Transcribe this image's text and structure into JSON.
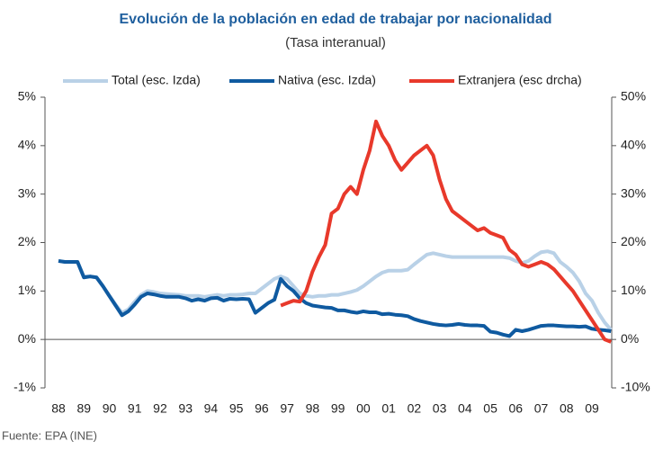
{
  "chart_data": {
    "type": "line",
    "title": "Evolución de la población en edad de trabajar por nacionalidad",
    "subtitle": "(Tasa interanual)",
    "source": "Fuente: EPA (INE)",
    "categories": [
      "88",
      null,
      null,
      null,
      "89",
      null,
      null,
      null,
      "90",
      null,
      null,
      null,
      "91",
      null,
      null,
      null,
      "92",
      null,
      null,
      null,
      "93",
      null,
      null,
      null,
      "94",
      null,
      null,
      null,
      "95",
      null,
      null,
      null,
      "96",
      null,
      null,
      null,
      "97",
      null,
      null,
      null,
      "98",
      null,
      null,
      null,
      "99",
      null,
      null,
      null,
      "00",
      null,
      null,
      null,
      "01",
      null,
      null,
      null,
      "02",
      null,
      null,
      null,
      "03",
      null,
      null,
      null,
      "04",
      null,
      null,
      null,
      "05",
      null,
      null,
      null,
      "06",
      null,
      null,
      null,
      "07",
      null,
      null,
      null,
      "08",
      null,
      null,
      null,
      "09",
      null,
      null,
      null
    ],
    "series": [
      {
        "name": "Total (esc. Izda)",
        "color": "#b9d1e7",
        "axis": "y",
        "values": [
          1.62,
          1.6,
          1.6,
          1.6,
          1.3,
          1.3,
          1.28,
          1.1,
          0.9,
          0.72,
          0.55,
          0.62,
          0.78,
          0.92,
          1.0,
          0.98,
          0.95,
          0.94,
          0.93,
          0.92,
          0.9,
          0.9,
          0.9,
          0.88,
          0.9,
          0.92,
          0.9,
          0.92,
          0.92,
          0.93,
          0.95,
          0.95,
          1.05,
          1.15,
          1.25,
          1.3,
          1.25,
          1.1,
          0.95,
          0.9,
          0.88,
          0.9,
          0.9,
          0.92,
          0.92,
          0.95,
          0.98,
          1.02,
          1.1,
          1.2,
          1.3,
          1.38,
          1.42,
          1.42,
          1.42,
          1.44,
          1.55,
          1.65,
          1.75,
          1.78,
          1.75,
          1.72,
          1.7,
          1.7,
          1.7,
          1.7,
          1.7,
          1.7,
          1.7,
          1.7,
          1.7,
          1.68,
          1.62,
          1.58,
          1.62,
          1.72,
          1.8,
          1.82,
          1.78,
          1.6,
          1.5,
          1.38,
          1.2,
          0.95,
          0.8,
          0.55,
          0.35,
          0.2
        ]
      },
      {
        "name": "Nativa (esc. Izda)",
        "color": "#0f5aa0",
        "axis": "y",
        "values": [
          1.62,
          1.6,
          1.6,
          1.6,
          1.28,
          1.3,
          1.28,
          1.1,
          0.9,
          0.7,
          0.5,
          0.58,
          0.72,
          0.88,
          0.95,
          0.93,
          0.9,
          0.88,
          0.88,
          0.88,
          0.85,
          0.8,
          0.83,
          0.8,
          0.85,
          0.86,
          0.8,
          0.84,
          0.83,
          0.84,
          0.83,
          0.55,
          0.65,
          0.75,
          0.82,
          1.25,
          1.1,
          1.0,
          0.85,
          0.75,
          0.7,
          0.68,
          0.66,
          0.65,
          0.6,
          0.6,
          0.57,
          0.55,
          0.58,
          0.56,
          0.56,
          0.52,
          0.53,
          0.51,
          0.5,
          0.48,
          0.42,
          0.38,
          0.35,
          0.32,
          0.3,
          0.29,
          0.3,
          0.32,
          0.3,
          0.29,
          0.29,
          0.28,
          0.16,
          0.14,
          0.1,
          0.07,
          0.2,
          0.17,
          0.2,
          0.24,
          0.28,
          0.29,
          0.29,
          0.28,
          0.27,
          0.27,
          0.26,
          0.27,
          0.22,
          0.2,
          0.19,
          0.17
        ]
      },
      {
        "name": "Extranjera (esc drcha)",
        "color": "#e8392b",
        "axis": "y2",
        "values": [
          null,
          null,
          null,
          null,
          null,
          null,
          null,
          null,
          null,
          null,
          null,
          null,
          null,
          null,
          null,
          null,
          null,
          null,
          null,
          null,
          null,
          null,
          null,
          null,
          null,
          null,
          null,
          null,
          null,
          null,
          null,
          null,
          null,
          null,
          null,
          7.0,
          7.5,
          8,
          7.8,
          10,
          14,
          17,
          19.5,
          26,
          27,
          30,
          31.5,
          30,
          35,
          39,
          45,
          42,
          40,
          37,
          35,
          36.5,
          38,
          39,
          40,
          38,
          33,
          29,
          26.5,
          25.5,
          24.5,
          23.5,
          22.5,
          23,
          22,
          21.5,
          21,
          18.5,
          17.5,
          15.5,
          15,
          15.5,
          16,
          15.5,
          14.5,
          13,
          11.5,
          10,
          8,
          6,
          4,
          2,
          0,
          -0.5
        ]
      }
    ],
    "ylim": [
      -1,
      5
    ],
    "yticks": [
      {
        "value": -1,
        "label": "-1%"
      },
      {
        "value": 0,
        "label": "0%"
      },
      {
        "value": 1,
        "label": "1%"
      },
      {
        "value": 2,
        "label": "2%"
      },
      {
        "value": 3,
        "label": "3%"
      },
      {
        "value": 4,
        "label": "4%"
      },
      {
        "value": 5,
        "label": "5%"
      }
    ],
    "y2lim": [
      -10,
      50
    ],
    "y2ticks": [
      {
        "value": -10,
        "label": "-10%"
      },
      {
        "value": 0,
        "label": "0%"
      },
      {
        "value": 10,
        "label": "10%"
      },
      {
        "value": 20,
        "label": "20%"
      },
      {
        "value": 30,
        "label": "30%"
      },
      {
        "value": 40,
        "label": "40%"
      },
      {
        "value": 50,
        "label": "50%"
      }
    ],
    "legend": "top"
  }
}
